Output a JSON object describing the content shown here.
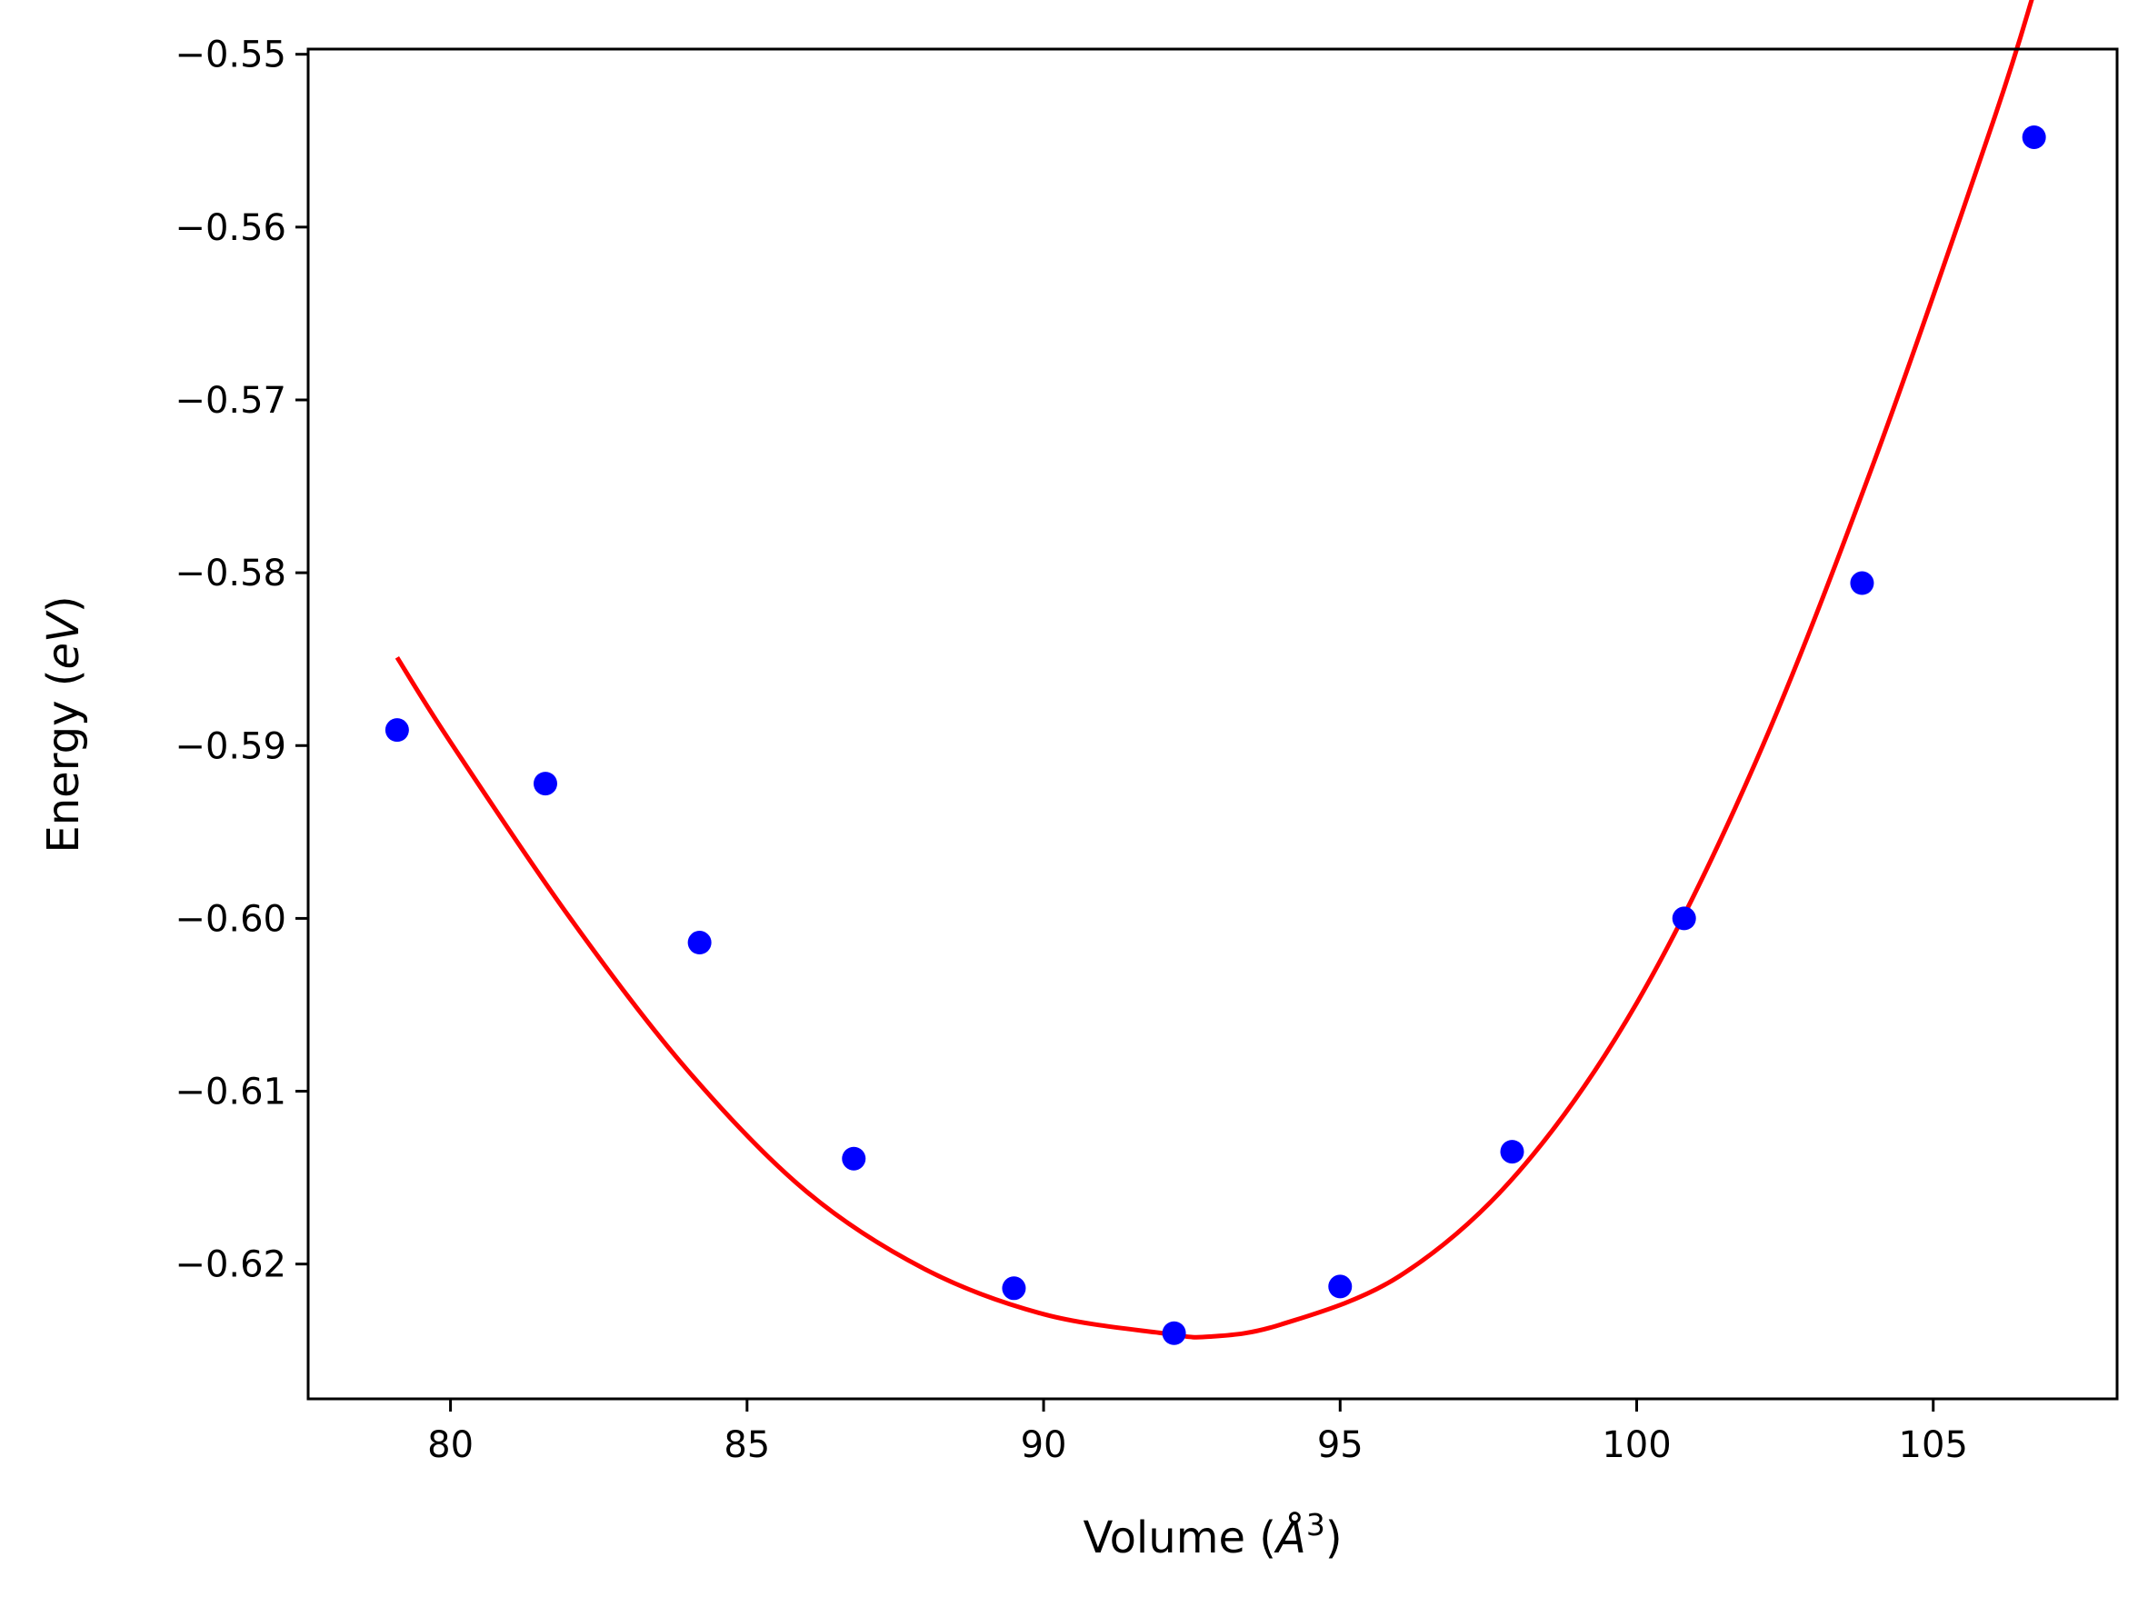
{
  "chart_data": {
    "type": "scatter",
    "xlabel": {
      "prefix": "Volume (",
      "symbol": "Å",
      "exponent": "3",
      "suffix": ")"
    },
    "ylabel": {
      "prefix": "Energy (",
      "unit": "eV",
      "suffix": ")"
    },
    "xlim": [
      77.6,
      108.1
    ],
    "ylim": [
      -0.6278,
      -0.5497
    ],
    "x_ticks": [
      80,
      85,
      90,
      95,
      100,
      105
    ],
    "y_ticks": [
      -0.55,
      -0.56,
      -0.57,
      -0.58,
      -0.59,
      -0.6,
      -0.61,
      -0.62
    ],
    "x_tick_labels": [
      "80",
      "85",
      "90",
      "95",
      "100",
      "105"
    ],
    "y_tick_labels": [
      "−0.55",
      "−0.56",
      "−0.57",
      "−0.58",
      "−0.59",
      "−0.60",
      "−0.61",
      "−0.62"
    ],
    "grid": false,
    "series": [
      {
        "kind": "scatter",
        "color": "#0000ff",
        "points": [
          [
            79.1,
            -0.5891
          ],
          [
            81.6,
            -0.5922
          ],
          [
            84.2,
            -0.6014
          ],
          [
            86.8,
            -0.6139
          ],
          [
            89.5,
            -0.6214
          ],
          [
            92.2,
            -0.624
          ],
          [
            95.0,
            -0.6213
          ],
          [
            97.9,
            -0.6135
          ],
          [
            100.8,
            -0.6
          ],
          [
            103.8,
            -0.5806
          ],
          [
            106.7,
            -0.5548
          ]
        ]
      },
      {
        "kind": "line",
        "color": "#ff0000",
        "points": [
          [
            79.1,
            -0.5849
          ],
          [
            80.0,
            -0.5898
          ],
          [
            82.0,
            -0.5999
          ],
          [
            84.0,
            -0.6088
          ],
          [
            86.0,
            -0.6158
          ],
          [
            88.0,
            -0.6203
          ],
          [
            90.0,
            -0.6229
          ],
          [
            92.0,
            -0.624
          ],
          [
            92.8,
            -0.6242
          ],
          [
            94.0,
            -0.6235
          ],
          [
            96.0,
            -0.6207
          ],
          [
            98.0,
            -0.6147
          ],
          [
            100.0,
            -0.6049
          ],
          [
            102.0,
            -0.591
          ],
          [
            104.0,
            -0.5736
          ],
          [
            106.0,
            -0.554
          ],
          [
            106.7,
            -0.5464
          ]
        ]
      }
    ]
  }
}
